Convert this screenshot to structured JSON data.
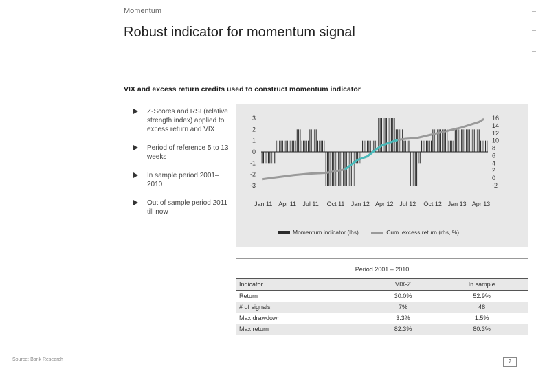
{
  "header": {
    "section": "Momentum",
    "title": "Robust indicator for momentum signal"
  },
  "subheading": "VIX and excess return credits used to construct momentum indicator",
  "bullets": [
    "Z-Scores and RSI (relative strength index) applied to excess return and VIX",
    "Period of reference 5 to 13 weeks",
    "In sample period 2001–2010",
    "Out of sample period 2011 till now"
  ],
  "chart_data": {
    "type": "bar",
    "x_tick_labels": [
      "Jan 11",
      "Apr 11",
      "Jul 11",
      "Oct 11",
      "Jan 12",
      "Apr 12",
      "Jul 12",
      "Oct 12",
      "Jan 13",
      "Apr 13"
    ],
    "series": [
      {
        "name": "Momentum indicator (lhs)",
        "axis": "left",
        "values": [
          -1,
          -1,
          -1,
          -1,
          -1,
          -1,
          -1,
          -1,
          -1,
          1,
          1,
          1,
          1,
          1,
          1,
          1,
          1,
          1,
          1,
          1,
          1,
          1,
          2,
          2,
          2,
          1,
          1,
          1,
          1,
          1,
          2,
          2,
          2,
          2,
          2,
          1,
          1,
          1,
          1,
          1,
          -3,
          -3,
          -3,
          -3,
          -3,
          -3,
          -3,
          -3,
          -3,
          -3,
          -3,
          -3,
          -3,
          -3,
          -3,
          -3,
          -3,
          -3,
          -3,
          -1,
          -1,
          -1,
          -1,
          1,
          1,
          1,
          1,
          1,
          1,
          1,
          1,
          1,
          1,
          3,
          3,
          3,
          3,
          3,
          3,
          3,
          3,
          3,
          3,
          3,
          2,
          2,
          2,
          2,
          2,
          1,
          1,
          1,
          1,
          -3,
          -3,
          -3,
          -3,
          -3,
          -1,
          -1,
          1,
          1,
          1,
          1,
          1,
          1,
          1,
          2,
          2,
          2,
          2,
          2,
          2,
          2,
          2,
          2,
          2,
          1,
          1,
          1,
          1,
          2,
          2,
          2,
          2,
          2,
          2,
          2,
          2,
          2,
          2,
          2,
          2,
          2,
          2,
          2,
          2,
          1,
          1,
          1,
          1,
          1
        ]
      },
      {
        "name": "Cum. excess return (rhs, %)",
        "axis": "right",
        "x_index": [
          0,
          9,
          20,
          30,
          40,
          52,
          60,
          66,
          71,
          75,
          80,
          85,
          90,
          97,
          105,
          115,
          125,
          136,
          139
        ],
        "values": [
          -0.3,
          0.2,
          0.8,
          1.2,
          1.4,
          2.3,
          4.9,
          5.8,
          7.5,
          8.7,
          9.5,
          10.2,
          10.5,
          10.7,
          11.5,
          12.5,
          13.5,
          15.0,
          15.8
        ]
      }
    ],
    "y_left": {
      "min": -3,
      "max": 3,
      "ticks": [
        3,
        2,
        1,
        0,
        -1,
        -2,
        -3
      ]
    },
    "y_right": {
      "min": -2,
      "max": 16,
      "ticks": [
        16,
        14,
        12,
        10,
        8,
        6,
        4,
        2,
        0,
        -2
      ]
    },
    "colors": {
      "bars": "#2b2b2b",
      "line": "#9a9a9a",
      "line_highlight": "#2ec4c4"
    },
    "legend": {
      "position": "bottom"
    }
  },
  "table": {
    "period_header": "Period 2001 – 2010",
    "columns": [
      "Indicator",
      "VIX-Z",
      "In sample"
    ],
    "rows": [
      [
        "Return",
        "30.0%",
        "52.9%"
      ],
      [
        "# of signals",
        "7%",
        "48"
      ],
      [
        "Max drawdown",
        "3.3%",
        "1.5%"
      ],
      [
        "Max return",
        "82.3%",
        "80.3%"
      ]
    ]
  },
  "footer": {
    "text": "Source: Bank Research",
    "page": "7"
  }
}
